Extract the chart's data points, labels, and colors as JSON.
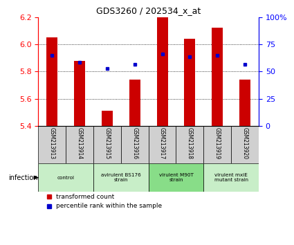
{
  "title": "GDS3260 / 202534_x_at",
  "samples": [
    "GSM213913",
    "GSM213914",
    "GSM213915",
    "GSM213916",
    "GSM213917",
    "GSM213918",
    "GSM213919",
    "GSM213920"
  ],
  "red_values": [
    6.05,
    5.88,
    5.51,
    5.74,
    6.21,
    6.04,
    6.12,
    5.74
  ],
  "blue_values": [
    5.92,
    5.87,
    5.82,
    5.85,
    5.93,
    5.91,
    5.92,
    5.85
  ],
  "ylim": [
    5.4,
    6.2
  ],
  "yticks_left": [
    5.4,
    5.6,
    5.8,
    6.0,
    6.2
  ],
  "yticks_right": [
    0,
    25,
    50,
    75,
    100
  ],
  "right_tick_labels": [
    "0",
    "25",
    "50",
    "75",
    "100%"
  ],
  "groups": [
    {
      "label": "control",
      "start": 0,
      "end": 2,
      "color": "#c8eec8"
    },
    {
      "label": "avirulent BS176\nstrain",
      "start": 2,
      "end": 4,
      "color": "#c8eec8"
    },
    {
      "label": "virulent M90T\nstrain",
      "start": 4,
      "end": 6,
      "color": "#88dd88"
    },
    {
      "label": "virulent mxiE\nmutant strain",
      "start": 6,
      "end": 8,
      "color": "#c8eec8"
    }
  ],
  "infection_label": "infection",
  "bar_color": "#cc0000",
  "dot_color": "#0000cc",
  "bar_width": 0.4,
  "bg_color": "#d0d0d0",
  "legend_items": [
    {
      "color": "#cc0000",
      "label": "transformed count"
    },
    {
      "color": "#0000cc",
      "label": "percentile rank within the sample"
    }
  ]
}
